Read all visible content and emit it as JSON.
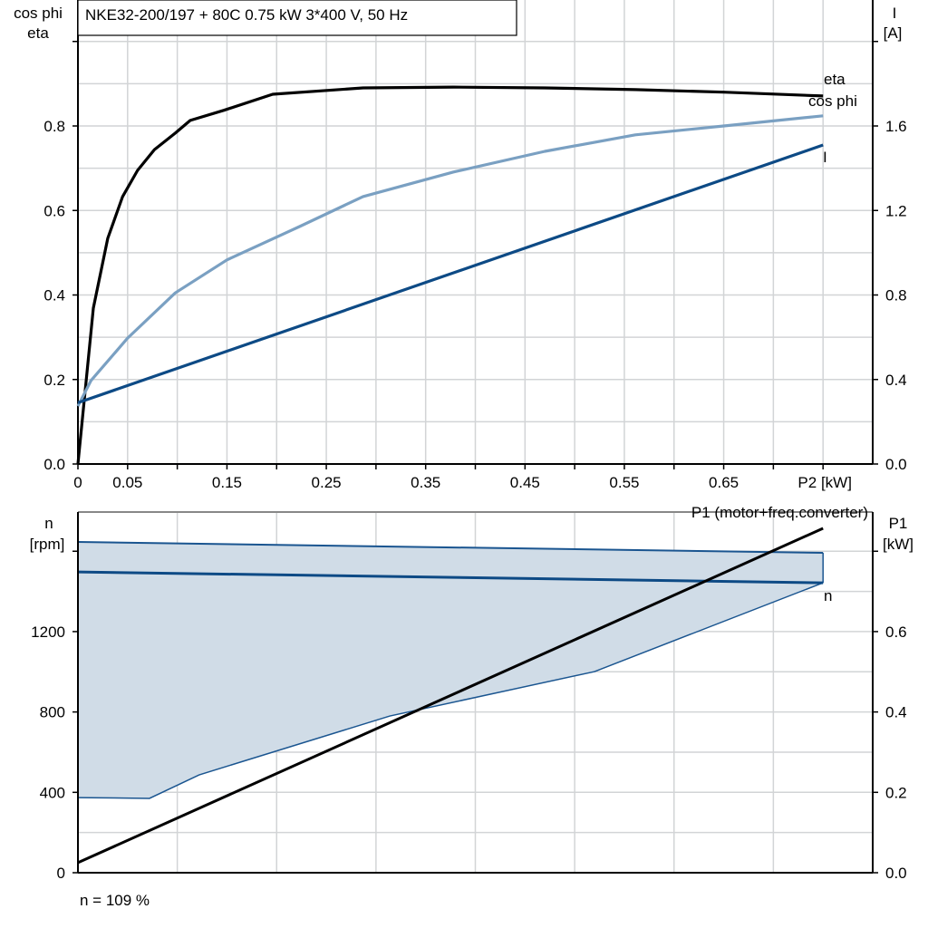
{
  "chart_data": [
    {
      "type": "line",
      "title": "NKE32-200/197 + 80C   0.75 kW   3*400 V, 50 Hz",
      "xlabel": "P2 [kW]",
      "xlim": [
        0,
        0.8
      ],
      "x_tick_labels": [
        "0",
        "0.05",
        "0.15",
        "0.25",
        "0.35",
        "0.45",
        "0.55",
        "0.65"
      ],
      "x_tick_label_values": [
        0,
        0.05,
        0.15,
        0.25,
        0.35,
        0.45,
        0.55,
        0.65
      ],
      "ylabel_left": [
        "cos phi",
        "eta"
      ],
      "ylim_left": [
        0,
        1.1
      ],
      "y_ticks_left": [
        "0.0",
        "0.2",
        "0.4",
        "0.6",
        "0.8"
      ],
      "ylabel_right": [
        "I",
        "[A]"
      ],
      "ylim_right": [
        0,
        2.2
      ],
      "y_ticks_right": [
        "0.0",
        "0.4",
        "0.8",
        "1.2",
        "1.6"
      ],
      "grid": true,
      "series": [
        {
          "name": "eta",
          "axis": "left",
          "color": "#000000",
          "x": [
            0,
            0.0155,
            0.03,
            0.045,
            0.06,
            0.077,
            0.098,
            0.113,
            0.147,
            0.196,
            0.287,
            0.378,
            0.47,
            0.561,
            0.65,
            0.75
          ],
          "y": [
            0,
            0.369,
            0.534,
            0.633,
            0.695,
            0.744,
            0.783,
            0.813,
            0.837,
            0.875,
            0.89,
            0.892,
            0.89,
            0.886,
            0.88,
            0.871
          ]
        },
        {
          "name": "cos phi",
          "axis": "left",
          "color": "#7aa0c2",
          "x": [
            0,
            0.013,
            0.05,
            0.098,
            0.15,
            0.223,
            0.287,
            0.378,
            0.47,
            0.561,
            0.65,
            0.75
          ],
          "y": [
            0.137,
            0.197,
            0.298,
            0.405,
            0.483,
            0.562,
            0.633,
            0.691,
            0.74,
            0.779,
            0.8,
            0.824
          ]
        },
        {
          "name": "I",
          "axis": "right",
          "color": "#0d4a85",
          "x": [
            0,
            0.75
          ],
          "y": [
            0.29,
            1.51
          ]
        }
      ]
    },
    {
      "type": "area",
      "xlim": [
        0,
        0.8
      ],
      "ylabel_left": [
        "n",
        "[rpm]"
      ],
      "ylim_left": [
        0,
        1795
      ],
      "y_ticks_left": [
        "0",
        "400",
        "800",
        "1200"
      ],
      "ylabel_right": [
        "P1",
        "[kW]"
      ],
      "ylim_right": [
        0,
        0.8975
      ],
      "y_ticks_right": [
        "0.0",
        "0.2",
        "0.4",
        "0.6"
      ],
      "grid": true,
      "band": {
        "color": "#d0dce7",
        "upper": {
          "x": [
            0,
            0.75
          ],
          "y": [
            1646,
            1592
          ]
        },
        "lower": {
          "x": [
            0,
            0.072,
            0.122,
            0.314,
            0.52,
            0.75
          ],
          "y": [
            374,
            370,
            487,
            780,
            1001,
            1443
          ]
        }
      },
      "series": [
        {
          "name": "n",
          "axis": "left",
          "color": "#0d4a85",
          "x": [
            0,
            0.75
          ],
          "y": [
            1497,
            1443
          ]
        },
        {
          "name": "P1 (motor+freq.converter)",
          "axis": "right",
          "color": "#000000",
          "x": [
            0,
            0.75
          ],
          "y": [
            0.025,
            0.857
          ]
        }
      ],
      "annotation": "n = 109 %"
    }
  ]
}
